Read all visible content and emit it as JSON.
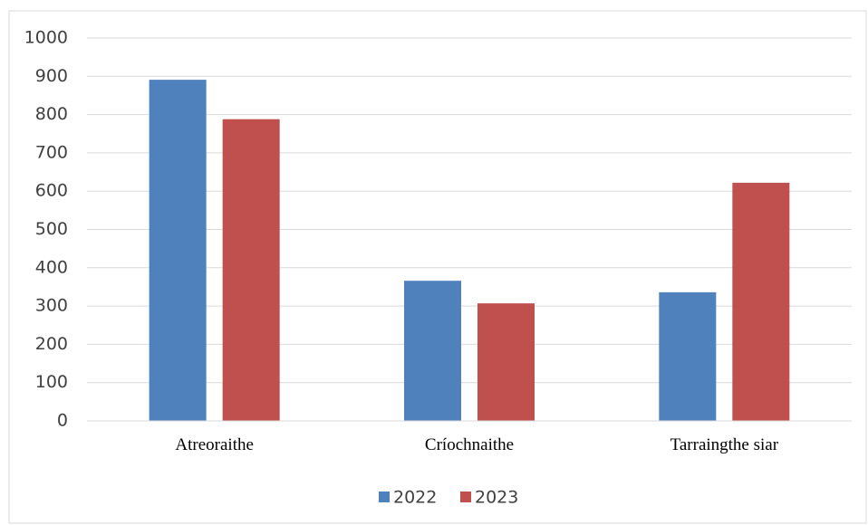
{
  "chart_data": {
    "type": "bar",
    "title": "",
    "xlabel": "",
    "ylabel": "",
    "categories": [
      "Atreoraithe",
      "Críochnaithe",
      "Tarraingthe siar"
    ],
    "series": [
      {
        "name": "2022",
        "color": "#4f81bd",
        "values": [
          891,
          366,
          336
        ]
      },
      {
        "name": "2023",
        "color": "#c0504d",
        "values": [
          788,
          307,
          622
        ]
      }
    ],
    "ylim": [
      0,
      1000
    ],
    "yticks": [
      "0",
      "100",
      "200",
      "300",
      "400",
      "500",
      "600",
      "700",
      "800",
      "900",
      "1000"
    ],
    "grid": true,
    "legend_position": "bottom"
  }
}
